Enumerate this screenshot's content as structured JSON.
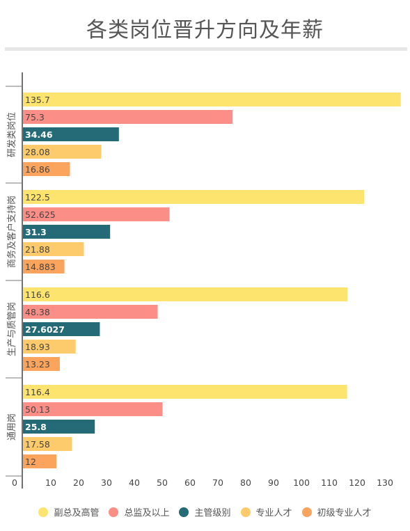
{
  "title": "各类岗位晋升方向及年薪",
  "chart_data": {
    "type": "bar",
    "orientation": "horizontal",
    "categories": [
      "研发类岗位",
      "商务及客户支持岗",
      "生产与质管岗",
      "通用岗"
    ],
    "series": [
      {
        "name": "副总及高管",
        "color": "#fde46f",
        "values": [
          135.7,
          122.5,
          116.6,
          116.4
        ]
      },
      {
        "name": "总监及以上",
        "color": "#fb8e87",
        "values": [
          75.3,
          52.625,
          48.38,
          50.13
        ]
      },
      {
        "name": "主管级别",
        "color": "#256b77",
        "values": [
          34.46,
          31.3,
          27.6027,
          25.8
        ]
      },
      {
        "name": "专业人才",
        "color": "#fdcb6c",
        "values": [
          28.08,
          21.88,
          18.93,
          17.58
        ]
      },
      {
        "name": "初级专业人才",
        "color": "#fba45d",
        "values": [
          16.86,
          14.883,
          13.23,
          12
        ]
      }
    ],
    "value_labels": [
      [
        "135.7",
        "75.3",
        "34.46",
        "28.08",
        "16.86"
      ],
      [
        "122.5",
        "52.625",
        "31.3",
        "21.88",
        "14.883"
      ],
      [
        "116.6",
        "48.38",
        "27.6027",
        "18.93",
        "13.23"
      ],
      [
        "116.4",
        "50.13",
        "25.8",
        "17.58",
        "12"
      ]
    ],
    "xticks": [
      "0",
      "10",
      "20",
      "30",
      "40",
      "50",
      "60",
      "70",
      "80",
      "90",
      "100",
      "110",
      "120",
      "130"
    ],
    "xlim": [
      0,
      138
    ],
    "grid": false,
    "legend_position": "bottom"
  }
}
